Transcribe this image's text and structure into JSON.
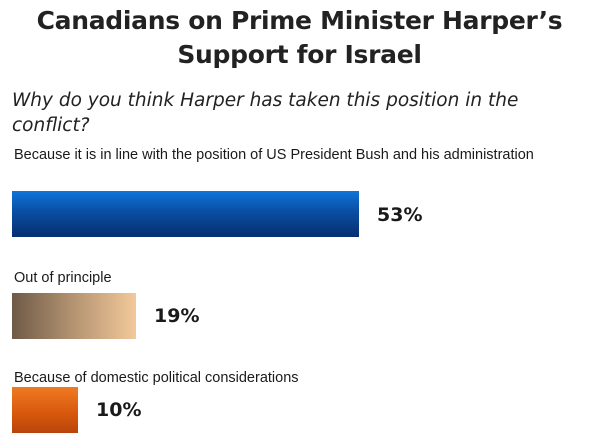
{
  "chart_data": {
    "type": "bar",
    "orientation": "horizontal",
    "title": "Canadians on Prime Minister Harper’s Support for Israel",
    "subtitle": "Why do you think Harper has taken this position in the conflict?",
    "categories": [
      "Because it is in line with the position of US President Bush and his administration",
      "Out of principle",
      "Because of domestic political considerations"
    ],
    "values": [
      53,
      19,
      10
    ],
    "value_labels": [
      "53%",
      "19%",
      "10%"
    ],
    "unit": "%",
    "xlim": [
      0,
      100
    ],
    "colors": [
      "#0a4ea3",
      "#c9a47e",
      "#d6570c"
    ],
    "grid": false,
    "legend": "none"
  }
}
